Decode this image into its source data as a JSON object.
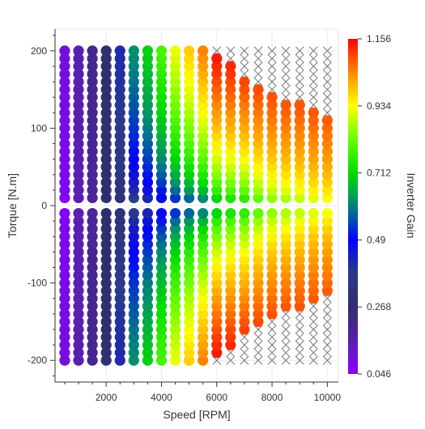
{
  "chart_data": {
    "type": "scatter",
    "xlabel": "Speed [RPM]",
    "ylabel": "Torque [N.m]",
    "colorbar_label": "Inverter Gain",
    "xlim": [
      150,
      10400
    ],
    "ylim": [
      -228,
      228
    ],
    "x_ticks": [
      2000,
      4000,
      6000,
      8000,
      10000
    ],
    "x_tick_labels": [
      "2000",
      "4000",
      "6000",
      "8000",
      "10000"
    ],
    "y_ticks": [
      -200,
      -100,
      0,
      100,
      200
    ],
    "y_tick_labels": [
      "-200",
      "-100",
      "0",
      "100",
      "200"
    ],
    "colorbar_range": [
      0.046,
      1.156
    ],
    "colorbar_ticks": [
      "1.156",
      "0.934",
      "0.712",
      "0.49",
      "0.268",
      "0.046"
    ],
    "colormap": [
      "#8800ff",
      "#5a1fb0",
      "#2e2e6e",
      "#2c3a8a",
      "#0000ff",
      "#008080",
      "#00dd00",
      "#66ff00",
      "#ffff00",
      "#ff8800",
      "#ff0000"
    ],
    "grid": true,
    "marker_not_feasible": "x",
    "marker_color_not_feasible": "#777777",
    "speed_values_rpm": [
      500,
      1000,
      1500,
      2000,
      2500,
      3000,
      3500,
      4000,
      4500,
      5000,
      5500,
      6000,
      6500,
      7000,
      7500,
      8000,
      8500,
      9000,
      9500,
      10000
    ],
    "torque_values_nm": [
      -200,
      -190,
      -180,
      -170,
      -160,
      -150,
      -140,
      -130,
      -120,
      -110,
      -100,
      -90,
      -80,
      -70,
      -60,
      -50,
      -40,
      -30,
      -20,
      -10,
      0,
      10,
      20,
      30,
      40,
      50,
      60,
      70,
      80,
      90,
      100,
      110,
      120,
      130,
      140,
      150,
      160,
      170,
      180,
      190,
      200
    ],
    "max_torque_envelope_nm": [
      200,
      200,
      200,
      200,
      200,
      200,
      200,
      200,
      200,
      200,
      200,
      190,
      180,
      166,
      153,
      142,
      134,
      132,
      124,
      113
    ],
    "gain_at_max_torque_by_speed": [
      0.09,
      0.16,
      0.21,
      0.29,
      0.41,
      0.62,
      0.7,
      0.79,
      0.92,
      0.98,
      1.05,
      1.15,
      1.15,
      1.15,
      1.15,
      1.15,
      1.15,
      1.15,
      1.15,
      1.15
    ],
    "gain_at_zero_torque_by_speed": [
      0.05,
      0.15,
      0.19,
      0.26,
      0.28,
      0.3,
      0.32,
      0.36,
      0.4,
      0.44,
      0.46,
      0.55,
      0.6,
      0.63,
      0.7,
      0.75,
      0.78,
      0.8,
      0.83,
      0.85
    ]
  }
}
